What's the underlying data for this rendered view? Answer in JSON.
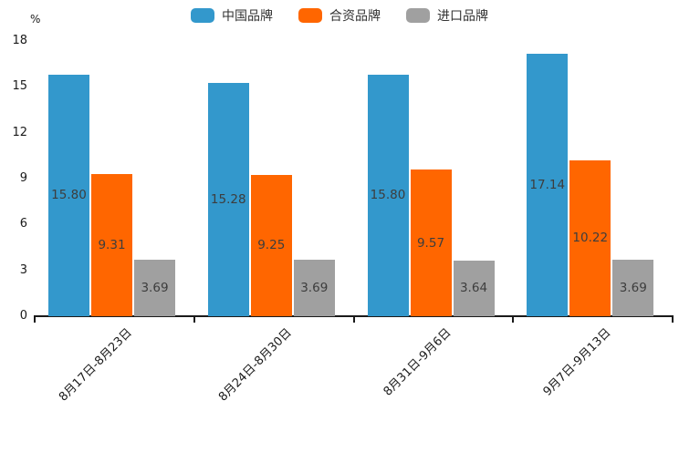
{
  "chart_data": {
    "type": "bar",
    "title": "",
    "ylabel": "%",
    "categories": [
      "8月17日-8月23日",
      "8月24日-8月30日",
      "8月31日-9月6日",
      "9月7日-9月13日"
    ],
    "series": [
      {
        "name": "中国品牌",
        "color": "#3398cc",
        "values": [
          15.8,
          15.28,
          15.8,
          17.14
        ]
      },
      {
        "name": "合资品牌",
        "color": "#ff6600",
        "values": [
          9.31,
          9.25,
          9.57,
          10.22
        ]
      },
      {
        "name": "进口品牌",
        "color": "#a0a0a0",
        "values": [
          3.69,
          3.69,
          3.64,
          3.69
        ]
      }
    ],
    "ylim": [
      0,
      18
    ],
    "yticks": [
      0,
      3,
      6,
      9,
      12,
      15,
      18
    ],
    "legend_position": "top",
    "grid": false,
    "value_label_format": "2-decimals",
    "value_label_color": "#3d3d3d",
    "axis_color": "#1a1a1a"
  }
}
